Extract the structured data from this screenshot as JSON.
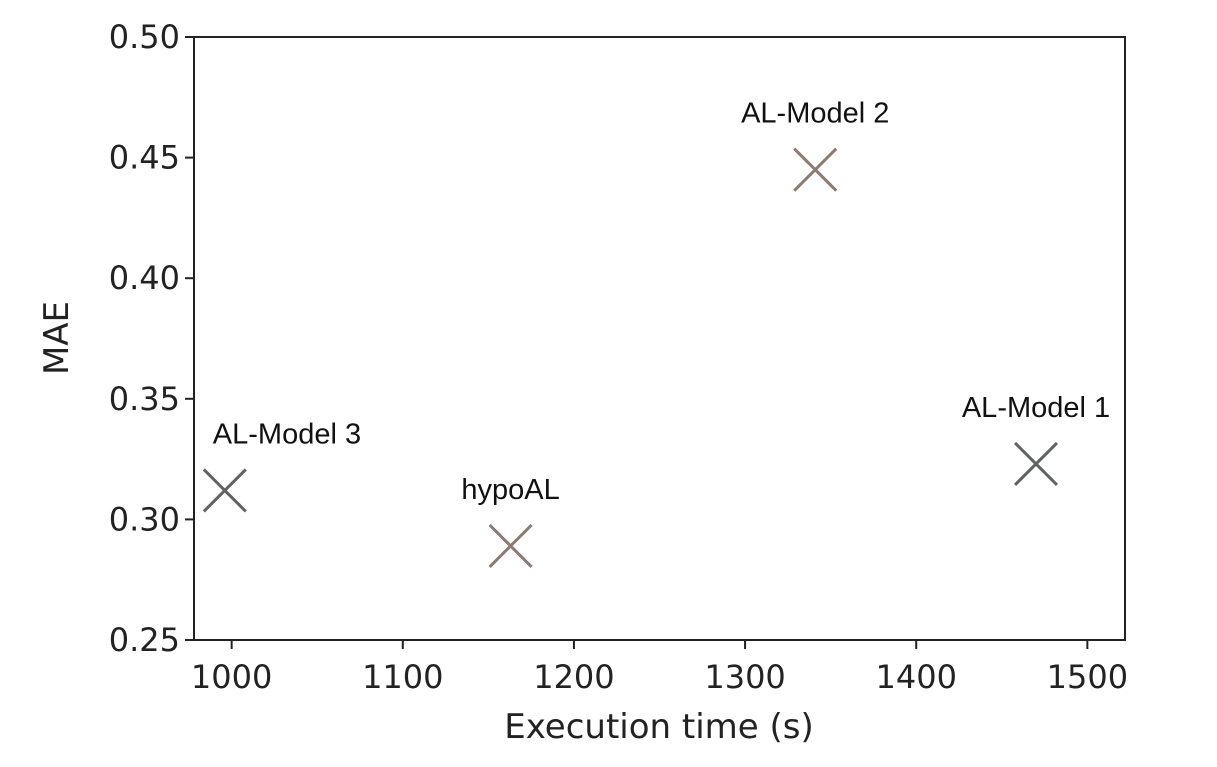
{
  "chart_data": {
    "type": "scatter",
    "xlabel": "Execution time (s)",
    "ylabel": "MAE",
    "xlim": [
      978,
      1522
    ],
    "ylim": [
      0.25,
      0.5
    ],
    "xticks": [
      1000,
      1100,
      1200,
      1300,
      1400,
      1500
    ],
    "xtick_labels": [
      "1000",
      "1100",
      "1200",
      "1300",
      "1400",
      "1500"
    ],
    "yticks": [
      0.25,
      0.3,
      0.35,
      0.4,
      0.45,
      0.5
    ],
    "ytick_labels": [
      "0.25",
      "0.30",
      "0.35",
      "0.40",
      "0.45",
      "0.50"
    ],
    "grid": false,
    "marker": "x",
    "points": [
      {
        "label": "AL-Model 3",
        "x": 996,
        "y": 0.312,
        "color": "#5f6361"
      },
      {
        "label": "hypoAL",
        "x": 1163,
        "y": 0.289,
        "color": "#8c7b74"
      },
      {
        "label": "AL-Model 2",
        "x": 1341,
        "y": 0.445,
        "color": "#8c7b74"
      },
      {
        "label": "AL-Model 1",
        "x": 1470,
        "y": 0.323,
        "color": "#5f6361"
      }
    ]
  }
}
